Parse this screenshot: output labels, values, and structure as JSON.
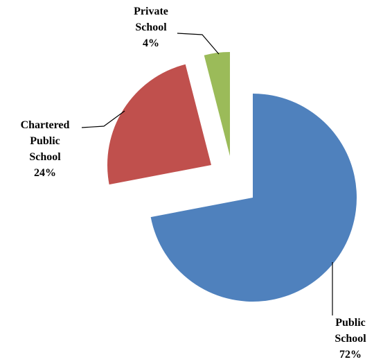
{
  "chart_data": {
    "type": "pie",
    "categories": [
      "Public School",
      "Chartered Public School",
      "Private School"
    ],
    "values": [
      72,
      24,
      4
    ],
    "value_labels": [
      "72%",
      "24%",
      "4%"
    ],
    "colors": [
      "#4f81bd",
      "#c0504d",
      "#9bbb59"
    ]
  }
}
